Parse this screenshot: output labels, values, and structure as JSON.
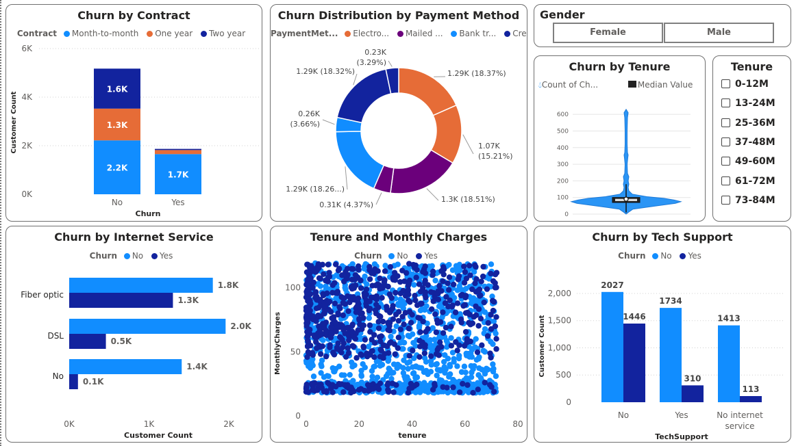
{
  "colors": {
    "light": "#118dff",
    "orange": "#e66c37",
    "dark": "#12239e",
    "purple": "#6b007b",
    "violin": "#2b95f5",
    "grid": "#d0d0d0",
    "axis": "#605e5c"
  },
  "contract": {
    "title": "Churn by Contract",
    "legend_title": "Contract",
    "legend": [
      "Month-to-month",
      "One year",
      "Two year"
    ],
    "ylabel": "Customer Count",
    "xlabel": "Churn"
  },
  "payment": {
    "title": "Churn Distribution by Payment Method",
    "legend_title": "PaymentMet...",
    "legend": [
      "Electro...",
      "Mailed ...",
      "Bank tr...",
      "Credit ..."
    ],
    "labels": [
      [
        "1.29K (18.37%)"
      ],
      [
        "1.07K",
        "(15.21%)"
      ],
      [
        "1.3K (18.51%)"
      ],
      [
        "0.31K (4.37%)"
      ],
      [
        "1.29K (18.26...)"
      ],
      [
        "0.26K",
        "(3.66%)"
      ],
      [
        "1.29K (18.32%)"
      ],
      [
        "0.23K",
        "(3.29%)"
      ]
    ]
  },
  "gender": {
    "title": "Gender",
    "options": [
      "Female",
      "Male"
    ]
  },
  "tenure_violin": {
    "title": "Churn by Tenure",
    "legend": [
      "Count of Ch...",
      "Median Value"
    ]
  },
  "tenure_slicer": {
    "title": "Tenure",
    "options": [
      "0-12M",
      "13-24M",
      "25-36M",
      "37-48M",
      "49-60M",
      "61-72M",
      "73-84M"
    ]
  },
  "internet": {
    "title": "Churn by Internet Service",
    "legend_title": "Churn",
    "legend": [
      "No",
      "Yes"
    ],
    "xlabel": "Customer Count"
  },
  "scatter": {
    "title": "Tenure and Monthly Charges",
    "legend_title": "Churn",
    "legend": [
      "No",
      "Yes"
    ],
    "xlabel": "tenure",
    "ylabel": "MonthlyCharges"
  },
  "techsupport": {
    "title": "Churn by Tech Support",
    "legend_title": "Churn",
    "legend": [
      "No",
      "Yes"
    ],
    "xlabel": "TechSupport",
    "ylabel": "Customer Count"
  },
  "chart_data": [
    {
      "id": "contract",
      "type": "bar",
      "stacked": true,
      "categories": [
        "No",
        "Yes"
      ],
      "series": [
        {
          "name": "Month-to-month",
          "values": [
            2220,
            1655
          ]
        },
        {
          "name": "One year",
          "values": [
            1307,
            166
          ]
        },
        {
          "name": "Two year",
          "values": [
            1647,
            48
          ]
        }
      ],
      "data_labels": [
        [
          "2.2K",
          "1.3K",
          "1.6K"
        ],
        [
          "1.7K",
          "",
          ""
        ]
      ],
      "ylim": [
        0,
        6000
      ],
      "yticks": [
        "0K",
        "2K",
        "4K",
        "6K"
      ],
      "grid": true
    },
    {
      "id": "payment",
      "type": "pie",
      "donut": true,
      "slices": [
        {
          "category": "Electro...",
          "value": 18.37
        },
        {
          "category": "Electro...",
          "value": 15.21
        },
        {
          "category": "Mailed ...",
          "value": 18.51
        },
        {
          "category": "Mailed ...",
          "value": 4.37
        },
        {
          "category": "Bank tr...",
          "value": 18.26
        },
        {
          "category": "Bank tr...",
          "value": 3.66
        },
        {
          "category": "Credit ...",
          "value": 18.32
        },
        {
          "category": "Credit ...",
          "value": 3.29
        }
      ]
    },
    {
      "id": "tenure",
      "type": "violin",
      "yticks": [
        0,
        100,
        200,
        300,
        400,
        500,
        600
      ],
      "ylim": [
        0,
        650
      ],
      "median": 90,
      "q1": 70,
      "q3": 100,
      "whisker_low": 10,
      "whisker_high": 180,
      "max": 630
    },
    {
      "id": "internet",
      "type": "bar",
      "orientation": "horizontal",
      "categories": [
        "Fiber optic",
        "DSL",
        "No"
      ],
      "series": [
        {
          "name": "No",
          "values": [
            1800,
            1960,
            1410
          ],
          "labels": [
            "1.8K",
            "2.0K",
            "1.4K"
          ]
        },
        {
          "name": "Yes",
          "values": [
            1300,
            460,
            110
          ],
          "labels": [
            "1.3K",
            "0.5K",
            "0.1K"
          ]
        }
      ],
      "xlim": [
        0,
        2000
      ],
      "xticks": [
        "0K",
        "1K",
        "2K"
      ]
    },
    {
      "id": "scatter",
      "type": "scatter",
      "series": [
        {
          "name": "No"
        },
        {
          "name": "Yes"
        }
      ],
      "xlim": [
        0,
        80
      ],
      "ylim": [
        0,
        120
      ],
      "xticks": [
        0,
        20,
        40,
        60,
        80
      ],
      "yticks": [
        0,
        50,
        100
      ],
      "note_range": {
        "x": [
          0,
          72
        ],
        "y": [
          18,
          119
        ]
      }
    },
    {
      "id": "techsupport",
      "type": "bar",
      "categories": [
        "No",
        "Yes",
        "No internet service"
      ],
      "series": [
        {
          "name": "No",
          "values": [
            2027,
            1734,
            1413
          ]
        },
        {
          "name": "Yes",
          "values": [
            1446,
            310,
            113
          ]
        }
      ],
      "ylim": [
        0,
        2100
      ],
      "yticks": [
        "0",
        "500",
        "1,000",
        "1,500",
        "2,000"
      ],
      "grid": true
    }
  ]
}
